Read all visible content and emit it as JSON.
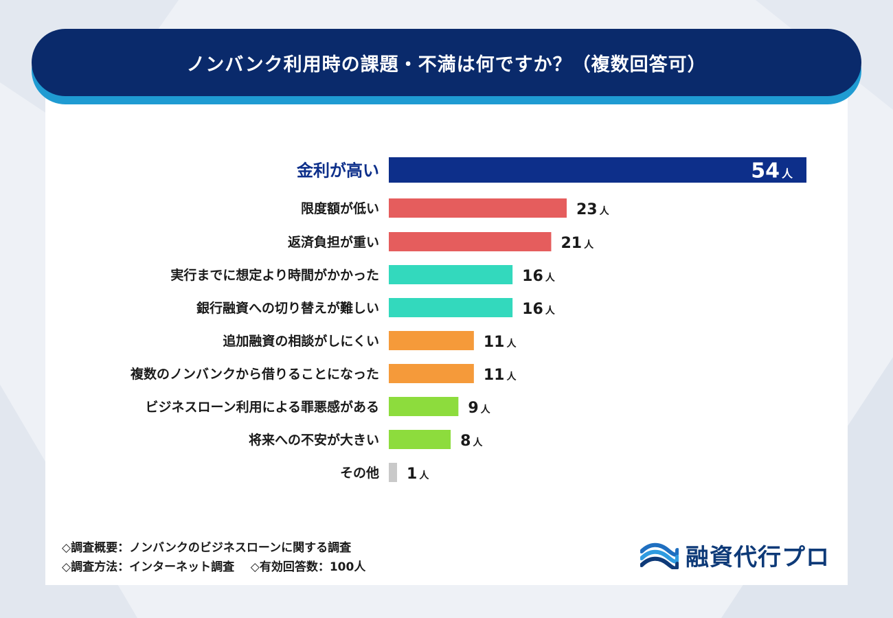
{
  "title": "ノンバンク利用時の課題・不満は何ですか？（複数回答可）",
  "chart_data": {
    "type": "bar",
    "orientation": "horizontal",
    "unit": "人",
    "categories": [
      "金利が高い",
      "限度額が低い",
      "返済負担が重い",
      "実行までに想定より時間がかかった",
      "銀行融資への切り替えが難しい",
      "追加融資の相談がしにくい",
      "複数のノンバンクから借りることになった",
      "ビジネスローン利用による罪悪感がある",
      "将来への不安が大きい",
      "その他"
    ],
    "values": [
      54,
      23,
      21,
      16,
      16,
      11,
      11,
      9,
      8,
      1
    ],
    "colors": [
      "#0d2f8a",
      "#e55d5d",
      "#e55d5d",
      "#33d9bd",
      "#33d9bd",
      "#f59a3a",
      "#f59a3a",
      "#8ddc3d",
      "#8ddc3d",
      "#c9c9c9"
    ],
    "label_colors": [
      "#0d2f8a",
      "#1a1a1a",
      "#1a1a1a",
      "#1a1a1a",
      "#1a1a1a",
      "#1a1a1a",
      "#1a1a1a",
      "#1a1a1a",
      "#1a1a1a",
      "#1a1a1a"
    ],
    "value_label_inside": [
      true,
      false,
      false,
      false,
      false,
      false,
      false,
      false,
      false,
      false
    ],
    "xlim": [
      0,
      54
    ]
  },
  "notes": {
    "line1": "◇調査概要：ノンバンクのビジネスローンに関する調査",
    "line2a": "◇調査方法：インターネット調査",
    "line2b": "◇有効回答数：100人"
  },
  "logo": {
    "text": "融資代行プロ",
    "icon": "wave-logo-icon"
  }
}
